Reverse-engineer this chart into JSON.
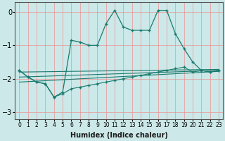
{
  "xlabel": "Humidex (Indice chaleur)",
  "x": [
    0,
    1,
    2,
    3,
    4,
    5,
    6,
    7,
    8,
    9,
    10,
    11,
    12,
    13,
    14,
    15,
    16,
    17,
    18,
    19,
    20,
    21,
    22,
    23
  ],
  "main_line": [
    -1.75,
    -1.95,
    -2.1,
    -2.15,
    -2.55,
    -2.4,
    -0.85,
    -0.9,
    -1.0,
    -1.0,
    -0.35,
    0.05,
    -0.45,
    -0.55,
    -0.55,
    -0.55,
    0.05,
    0.05,
    -0.65,
    -1.1,
    -1.5,
    -1.75,
    -1.8,
    -1.75
  ],
  "lower_line": [
    -1.75,
    -1.95,
    -2.1,
    -2.15,
    -2.55,
    -2.45,
    -2.3,
    -2.25,
    -2.2,
    -2.15,
    -2.1,
    -2.05,
    -2.0,
    -1.95,
    -1.9,
    -1.85,
    -1.8,
    -1.75,
    -1.7,
    -1.65,
    -1.8,
    -1.75,
    -1.8,
    -1.75
  ],
  "trend1_x": [
    0,
    23
  ],
  "trend1_y": [
    -1.8,
    -1.72
  ],
  "trend2_x": [
    0,
    23
  ],
  "trend2_y": [
    -1.95,
    -1.75
  ],
  "trend3_x": [
    0,
    23
  ],
  "trend3_y": [
    -2.1,
    -1.78
  ],
  "bg_color": "#cce8e8",
  "line_color": "#1a7a6e",
  "grid_color": "#f08080",
  "ylim": [
    -3.2,
    0.3
  ],
  "xlim": [
    -0.5,
    23.5
  ],
  "yticks": [
    0,
    -1,
    -2,
    -3
  ],
  "xticks": [
    0,
    1,
    2,
    3,
    4,
    5,
    6,
    7,
    8,
    9,
    10,
    11,
    12,
    13,
    14,
    15,
    16,
    17,
    18,
    19,
    20,
    21,
    22,
    23
  ]
}
